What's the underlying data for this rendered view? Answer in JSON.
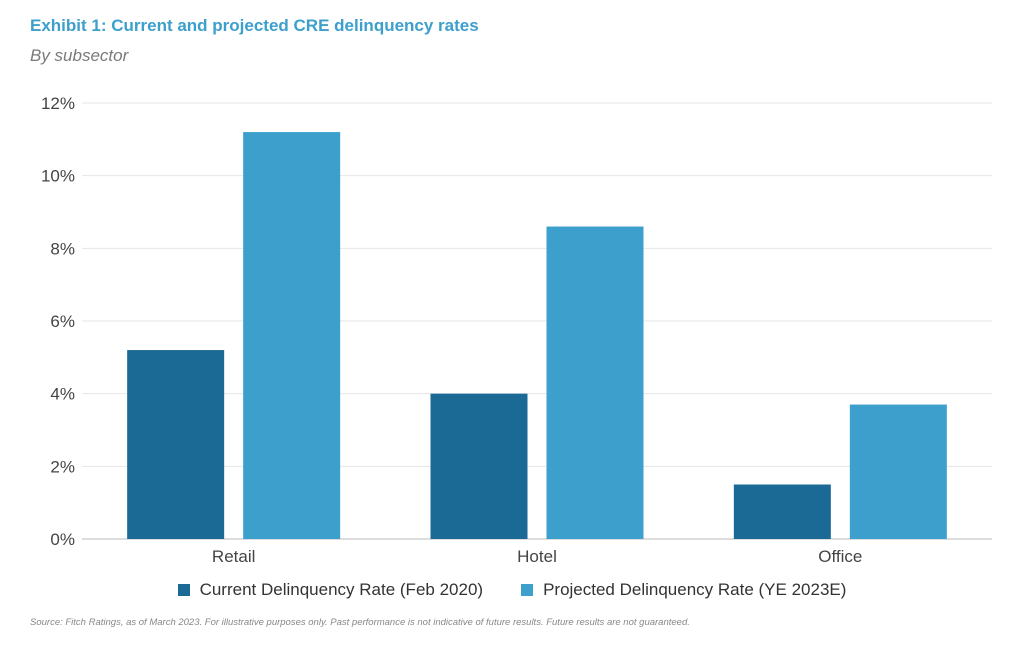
{
  "title": "Exhibit 1: Current and projected CRE delinquency rates",
  "subtitle": "By subsector",
  "source": "Source: Fitch Ratings, as of March 2023. For illustrative purposes only. Past performance is not indicative of future results. Future results are not guaranteed.",
  "chart_data": {
    "type": "bar",
    "categories": [
      "Retail",
      "Hotel",
      "Office"
    ],
    "series": [
      {
        "name": "Current Delinquency Rate (Feb 2020)",
        "values": [
          5.2,
          4.0,
          1.5
        ],
        "color": "#1b6a96"
      },
      {
        "name": "Projected Delinquency Rate (YE 2023E)",
        "values": [
          11.2,
          8.6,
          3.7
        ],
        "color": "#3d9fcc"
      }
    ],
    "ylim": [
      0,
      12
    ],
    "yticks": [
      "0%",
      "2%",
      "4%",
      "6%",
      "8%",
      "10%",
      "12%"
    ],
    "grid": true,
    "legend": "bottom"
  }
}
